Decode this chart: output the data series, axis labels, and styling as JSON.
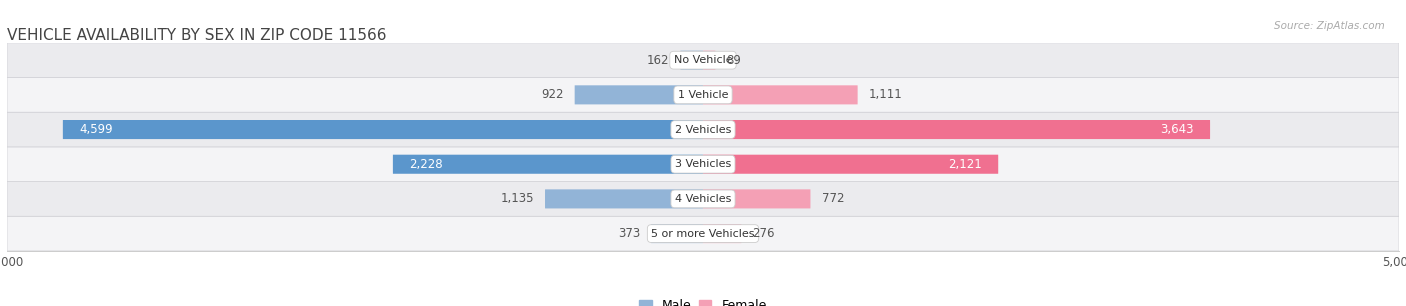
{
  "title": "VEHICLE AVAILABILITY BY SEX IN ZIP CODE 11566",
  "source": "Source: ZipAtlas.com",
  "categories": [
    "No Vehicle",
    "1 Vehicle",
    "2 Vehicles",
    "3 Vehicles",
    "4 Vehicles",
    "5 or more Vehicles"
  ],
  "male_values": [
    162,
    922,
    4599,
    2228,
    1135,
    373
  ],
  "female_values": [
    89,
    1111,
    3643,
    2121,
    772,
    276
  ],
  "male_labels": [
    "162",
    "922",
    "4,599",
    "2,228",
    "1,135",
    "373"
  ],
  "female_labels": [
    "89",
    "1,111",
    "3,643",
    "2,121",
    "772",
    "276"
  ],
  "male_color": "#92b4d7",
  "female_color": "#f4a0b5",
  "male_color_sat": "#5b96cc",
  "female_color_sat": "#f07090",
  "row_color_light": "#f4f4f6",
  "row_color_dark": "#ebebee",
  "bg_color": "#ffffff",
  "axis_limit": 5000,
  "title_fontsize": 11,
  "label_fontsize": 8.5,
  "category_fontsize": 8,
  "legend_fontsize": 9,
  "source_fontsize": 7.5,
  "bar_height": 0.55,
  "inside_threshold": 2000
}
